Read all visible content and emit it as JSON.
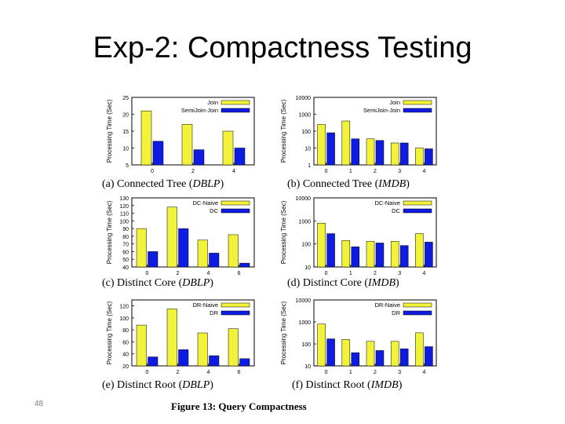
{
  "slide": {
    "title": "Exp-2: Compactness Testing",
    "number": "48",
    "figure_caption": "Figure 13: Query Compactness"
  },
  "colors": {
    "series1": "#f2f23a",
    "series2": "#0d1ce0",
    "axis": "#000000"
  },
  "chart_data": [
    {
      "type": "bar",
      "panel": "a",
      "caption_prefix": "(a) Connected Tree (",
      "caption_em": "DBLP",
      "caption_suffix": ")",
      "ylabel": "Processing Time (Sec)",
      "scale": "linear",
      "ylim": [
        5,
        25
      ],
      "yticks": [
        "5",
        "10",
        "15",
        "20",
        "25"
      ],
      "categories": [
        "0",
        "2",
        "4"
      ],
      "series": [
        {
          "name": "Join",
          "values": [
            21,
            17,
            15
          ]
        },
        {
          "name": "SemiJoin-Join",
          "values": [
            12,
            9.5,
            10
          ]
        }
      ],
      "legend": "top-right"
    },
    {
      "type": "bar",
      "panel": "b",
      "caption_prefix": "(b) Connected Tree (",
      "caption_em": "IMDB",
      "caption_suffix": ")",
      "ylabel": "Processing Time (Sec)",
      "scale": "log",
      "ylim": [
        1,
        10000
      ],
      "yticks": [
        "1",
        "10",
        "100",
        "1000",
        "10000"
      ],
      "categories": [
        "0",
        "1",
        "2",
        "3",
        "4"
      ],
      "series": [
        {
          "name": "Join",
          "values": [
            250,
            400,
            35,
            20,
            10
          ]
        },
        {
          "name": "SemiJoin-Join",
          "values": [
            80,
            35,
            28,
            20,
            9
          ]
        }
      ],
      "legend": "top-right"
    },
    {
      "type": "bar",
      "panel": "c",
      "caption_prefix": "(c) Distinct Core (",
      "caption_em": "DBLP",
      "caption_suffix": ")",
      "ylabel": "Processing Time (Sec)",
      "scale": "linear",
      "ylim": [
        40,
        130
      ],
      "yticks": [
        "40",
        "50",
        "60",
        "70",
        "80",
        "90",
        "100",
        "110",
        "120",
        "130"
      ],
      "categories": [
        "0",
        "2",
        "4",
        "6"
      ],
      "series": [
        {
          "name": "DC-Naive",
          "values": [
            90,
            118,
            75,
            82
          ]
        },
        {
          "name": "DC",
          "values": [
            60,
            90,
            58,
            45
          ]
        }
      ],
      "legend": "top-right"
    },
    {
      "type": "bar",
      "panel": "d",
      "caption_prefix": "(d) Distinct Core (",
      "caption_em": "IMDB",
      "caption_suffix": ")",
      "ylabel": "Processing Time (Sec)",
      "scale": "log",
      "ylim": [
        10,
        10000
      ],
      "yticks": [
        "10",
        "100",
        "1000",
        "10000"
      ],
      "categories": [
        "0",
        "1",
        "2",
        "3",
        "4"
      ],
      "series": [
        {
          "name": "DC-Naive",
          "values": [
            800,
            140,
            130,
            130,
            280
          ]
        },
        {
          "name": "DC",
          "values": [
            280,
            75,
            110,
            85,
            120
          ]
        }
      ],
      "legend": "top-right"
    },
    {
      "type": "bar",
      "panel": "e",
      "caption_prefix": "(e) Distinct Root (",
      "caption_em": "DBLP",
      "caption_suffix": ")",
      "ylabel": "Processing Time (Sec)",
      "scale": "linear",
      "ylim": [
        20,
        130
      ],
      "yticks": [
        "20",
        "40",
        "60",
        "80",
        "100",
        "120"
      ],
      "categories": [
        "0",
        "2",
        "4",
        "6"
      ],
      "series": [
        {
          "name": "DR-Naive",
          "values": [
            88,
            115,
            75,
            82
          ]
        },
        {
          "name": "DR",
          "values": [
            35,
            47,
            37,
            32
          ]
        }
      ],
      "legend": "top-right"
    },
    {
      "type": "bar",
      "panel": "f",
      "caption_prefix": "(f) Distinct Root (",
      "caption_em": "IMDB",
      "caption_suffix": ")",
      "ylabel": "Processing Time (Sec)",
      "scale": "log",
      "ylim": [
        10,
        10000
      ],
      "yticks": [
        "10",
        "100",
        "1000",
        "10000"
      ],
      "categories": [
        "0",
        "1",
        "2",
        "3",
        "4"
      ],
      "series": [
        {
          "name": "DR-Naive",
          "values": [
            800,
            160,
            130,
            130,
            320
          ]
        },
        {
          "name": "DR",
          "values": [
            170,
            40,
            50,
            60,
            75
          ]
        }
      ],
      "legend": "top-right"
    }
  ]
}
